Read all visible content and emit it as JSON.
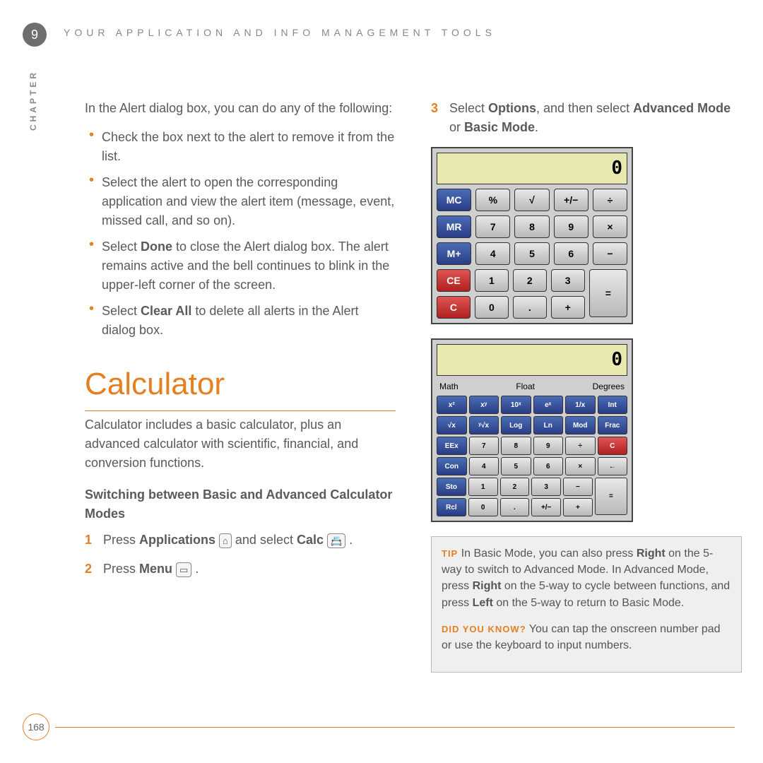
{
  "chapter": {
    "number": "9",
    "title": "YOUR APPLICATION AND INFO MANAGEMENT TOOLS",
    "side": "CHAPTER"
  },
  "left": {
    "intro": "In the Alert dialog box, you can do any of the following:",
    "bullets": [
      "Check the box next to the alert to remove it from the list.",
      "Select the alert to open the corresponding application and view the alert item (message, event, missed call, and so on).",
      "<span>Select <b>Done</b> to close the Alert dialog box. The alert remains active and the bell continues to blink in the upper-left corner of the screen.</span>",
      "<span>Select <b>Clear All</b> to delete all alerts in the Alert dialog box.</span>"
    ],
    "h1": "Calculator",
    "desc": "Calculator includes a basic calculator, plus an advanced calculator with scientific, financial, and conversion functions.",
    "sub": "Switching between Basic and Advanced Calculator Modes",
    "steps": [
      "<span>Press <b>Applications</b> <span class='icon' data-name='home-icon' data-interactable='false'>⌂</span> and select <b>Calc</b> <span class='icon' data-name='calc-icon' data-interactable='false'>📇</span> .</span>",
      "<span>Press <b>Menu</b> <span class='icon' data-name='menu-icon' data-interactable='false'>▭</span> .</span>"
    ]
  },
  "right": {
    "step3": "<span>Select <b>Options</b>, and then select <b>Advanced Mode</b> or <b>Basic Mode</b>.</span>",
    "basic": {
      "display": "0",
      "rows": [
        [
          [
            "MC",
            "blue"
          ],
          [
            "%",
            ""
          ],
          [
            "√",
            ""
          ],
          [
            "+/−",
            ""
          ],
          [
            "÷",
            ""
          ]
        ],
        [
          [
            "MR",
            "blue"
          ],
          [
            "7",
            ""
          ],
          [
            "8",
            ""
          ],
          [
            "9",
            ""
          ],
          [
            "×",
            ""
          ]
        ],
        [
          [
            "M+",
            "blue"
          ],
          [
            "4",
            ""
          ],
          [
            "5",
            ""
          ],
          [
            "6",
            ""
          ],
          [
            "−",
            ""
          ]
        ],
        [
          [
            "CE",
            "red"
          ],
          [
            "1",
            ""
          ],
          [
            "2",
            ""
          ],
          [
            "3",
            ""
          ],
          [
            "=",
            "tall"
          ]
        ],
        [
          [
            "C",
            "red"
          ],
          [
            "0",
            ""
          ],
          [
            ".",
            ""
          ],
          [
            "+",
            ""
          ]
        ]
      ]
    },
    "adv": {
      "display": "0",
      "modes": [
        "Math",
        "Float",
        "Degrees"
      ],
      "rows": [
        [
          [
            "x²",
            "blue"
          ],
          [
            "xʸ",
            "blue"
          ],
          [
            "10ˣ",
            "blue"
          ],
          [
            "eˣ",
            "blue"
          ],
          [
            "1/x",
            "blue"
          ],
          [
            "Int",
            "blue"
          ]
        ],
        [
          [
            "√x",
            "blue"
          ],
          [
            "ʸ√x",
            "blue"
          ],
          [
            "Log",
            "blue"
          ],
          [
            "Ln",
            "blue"
          ],
          [
            "Mod",
            "blue"
          ],
          [
            "Frac",
            "blue"
          ]
        ],
        [
          [
            "EEx",
            "blue"
          ],
          [
            "7",
            ""
          ],
          [
            "8",
            ""
          ],
          [
            "9",
            ""
          ],
          [
            "÷",
            ""
          ],
          [
            "C",
            "red"
          ]
        ],
        [
          [
            "Con",
            "blue"
          ],
          [
            "4",
            ""
          ],
          [
            "5",
            ""
          ],
          [
            "6",
            ""
          ],
          [
            "×",
            ""
          ],
          [
            "←",
            ""
          ]
        ],
        [
          [
            "Sto",
            "blue"
          ],
          [
            "1",
            ""
          ],
          [
            "2",
            ""
          ],
          [
            "3",
            ""
          ],
          [
            "−",
            ""
          ],
          [
            "=",
            "tall"
          ]
        ],
        [
          [
            "Rcl",
            "blue"
          ],
          [
            "0",
            ""
          ],
          [
            ".",
            ""
          ],
          [
            "+/−",
            ""
          ],
          [
            "+",
            ""
          ]
        ]
      ]
    },
    "tipTag": "TIP",
    "tip": "<span>In Basic Mode, you can also press <b>Right</b> on the 5-way to switch to Advanced Mode. In Advanced Mode, press <b>Right</b> on the 5-way to cycle between functions, and press <b>Left</b> on the 5-way to return to Basic Mode.</span>",
    "dykTag": "DID YOU KNOW?",
    "dyk": "You can tap the onscreen number pad or use the keyboard to input numbers."
  },
  "page": "168"
}
